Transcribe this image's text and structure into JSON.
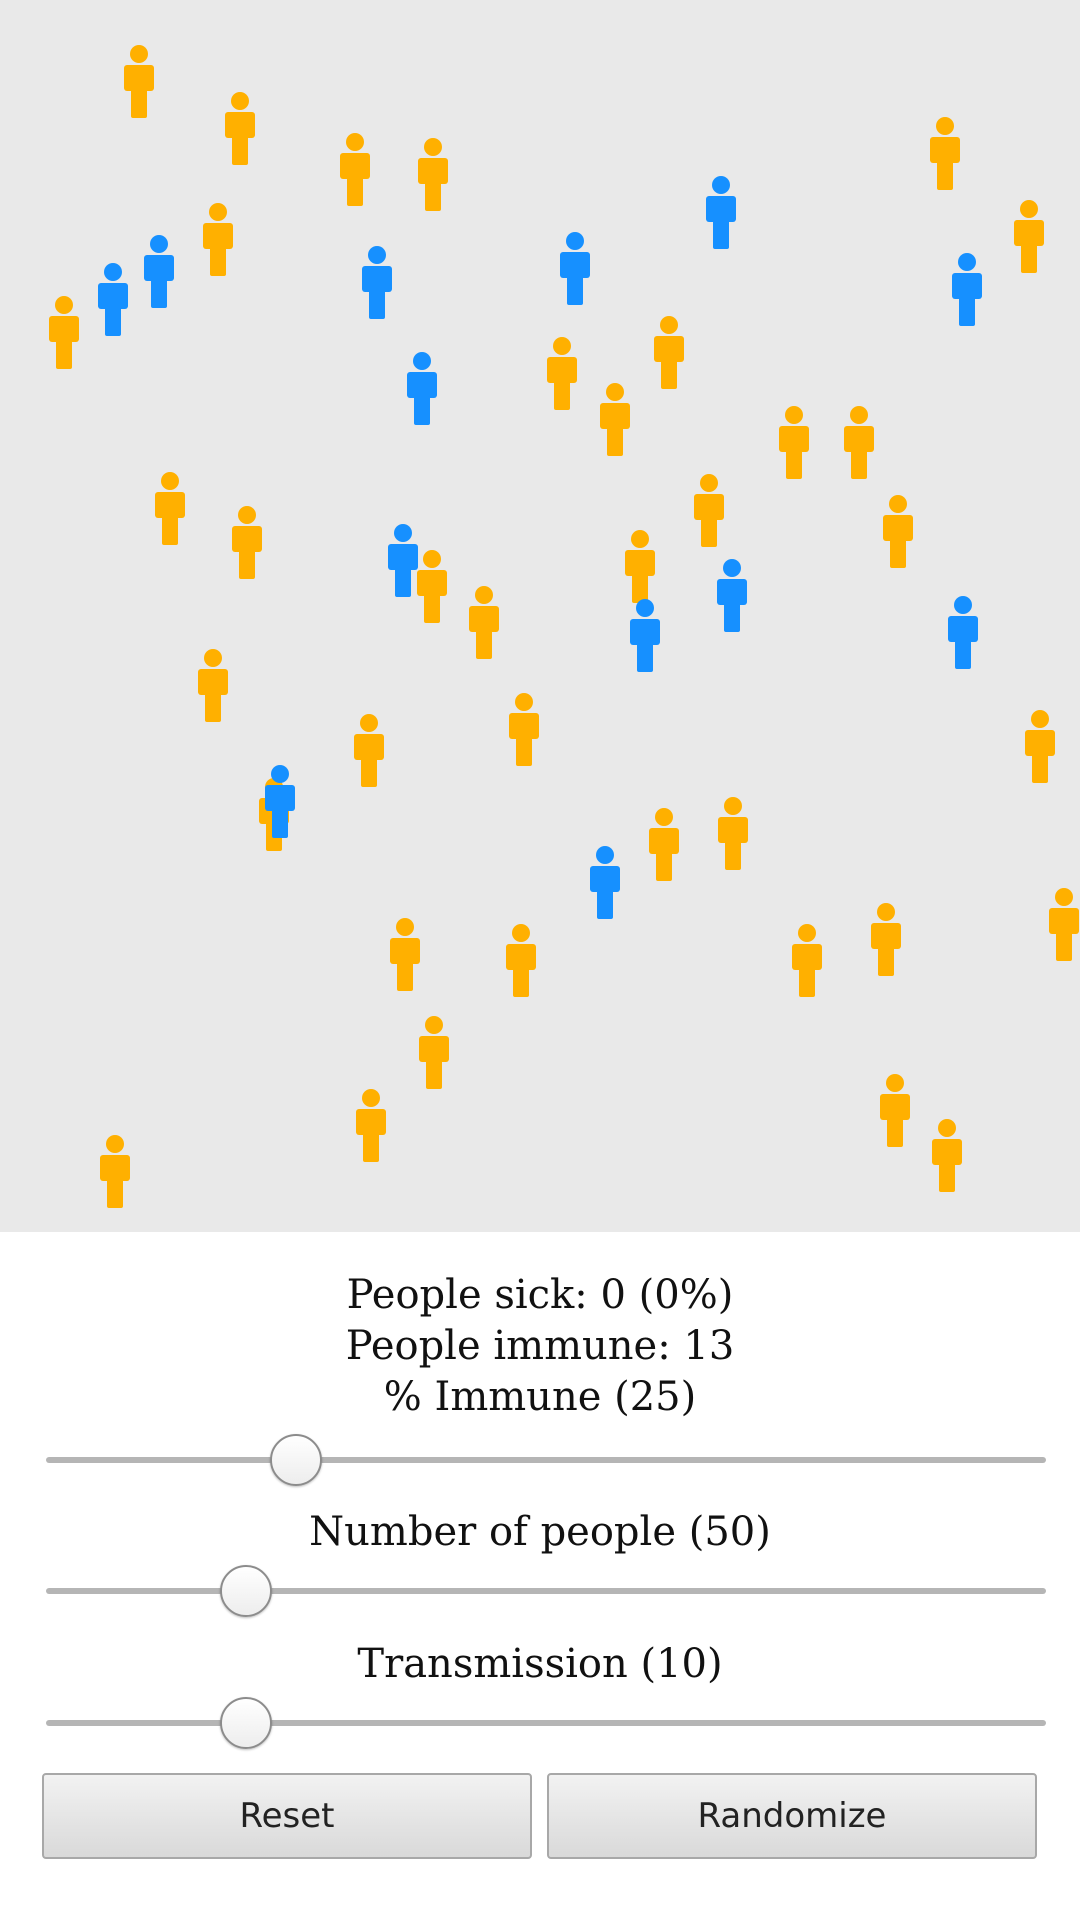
{
  "stats": {
    "sick": "People sick: 0 (0%)",
    "immune": "People immune: 13"
  },
  "sliders": [
    {
      "label": "% Immune (25)",
      "value": 25,
      "min": 0,
      "max": 100
    },
    {
      "label": "Number of people (50)",
      "value": 50,
      "min": 0,
      "max": 250
    },
    {
      "label": "Transmission (10)",
      "value": 10,
      "min": 0,
      "max": 50
    }
  ],
  "buttons": {
    "reset": "Reset",
    "randomize": "Randomize"
  },
  "colors": {
    "susceptible": "#ffb000",
    "immune": "#1690ff",
    "field": "#e9e9e9"
  },
  "people": {
    "immune_count": 13,
    "susceptible_count": 37,
    "icon": "person-icon"
  }
}
